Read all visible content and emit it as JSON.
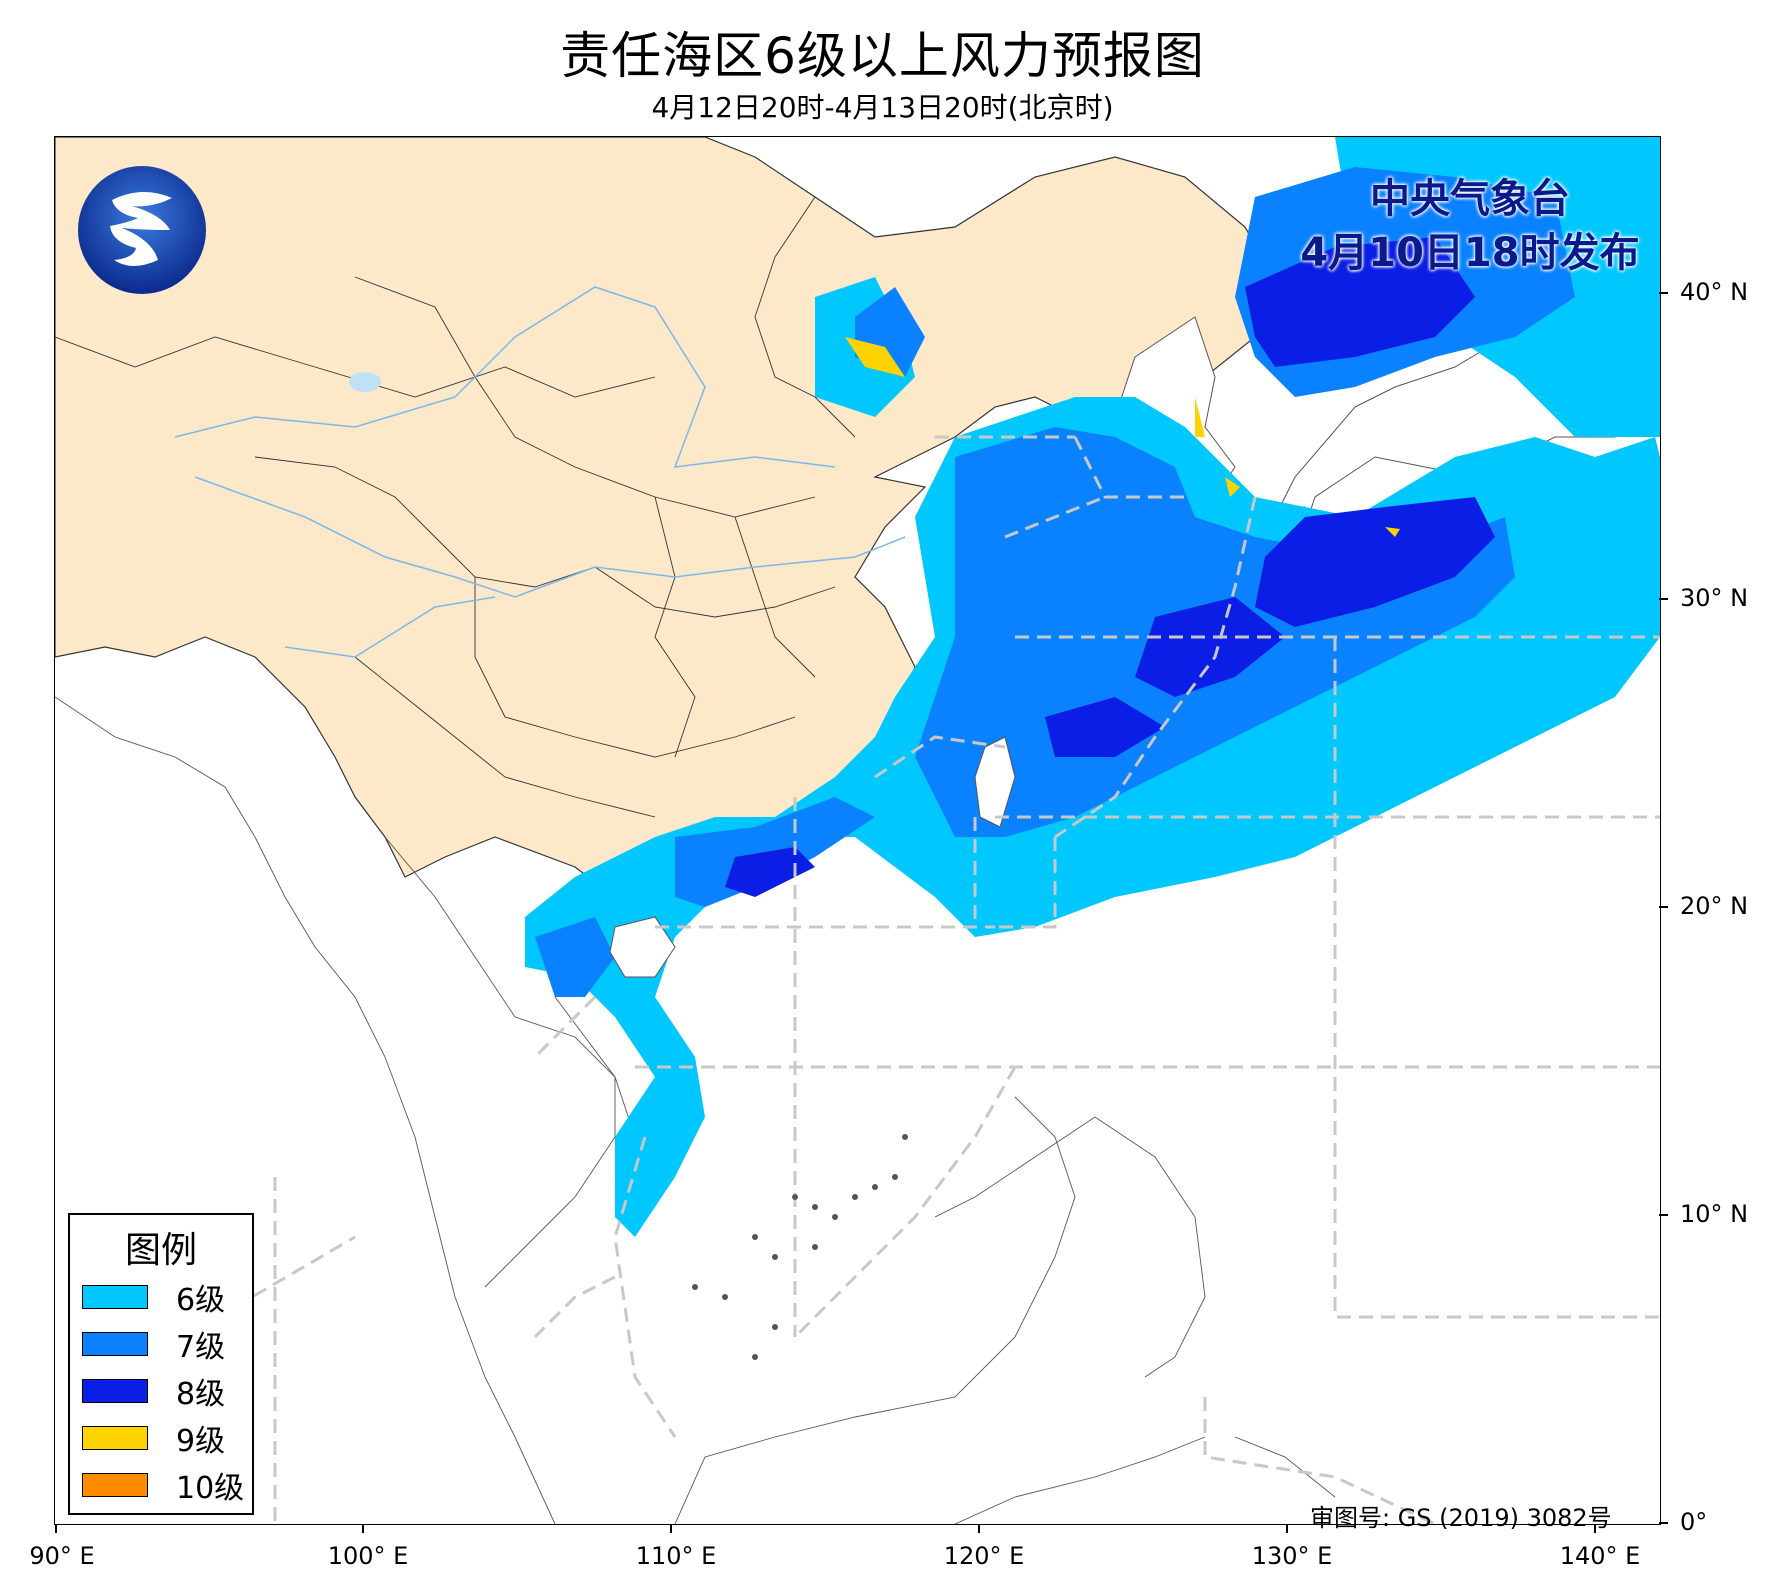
{
  "title": "责任海区6级以上风力预报图",
  "subtitle": "4月12日20时-4月13日20时(北京时)",
  "issuer": {
    "name": "中央气象台",
    "issued": "4月10日18时发布"
  },
  "approval": "审图号: GS (2019) 3082号",
  "axes": {
    "lat_labels": [
      "40° N",
      "30° N",
      "20° N",
      "10° N",
      "0°"
    ],
    "lon_labels": [
      "90° E",
      "100° E",
      "110° E",
      "120° E",
      "130° E",
      "140° E"
    ]
  },
  "legend": {
    "title": "图例",
    "items": [
      {
        "label": "6级",
        "color": "#00c8ff"
      },
      {
        "label": "7级",
        "color": "#0a82ff"
      },
      {
        "label": "8级",
        "color": "#0a1ee6"
      },
      {
        "label": "9级",
        "color": "#ffd200"
      },
      {
        "label": "10级",
        "color": "#ff8c00"
      }
    ]
  },
  "colors": {
    "land_china": "#fde8c9",
    "sea_boundary": "#c8c8c8",
    "river": "#7db7ea"
  }
}
